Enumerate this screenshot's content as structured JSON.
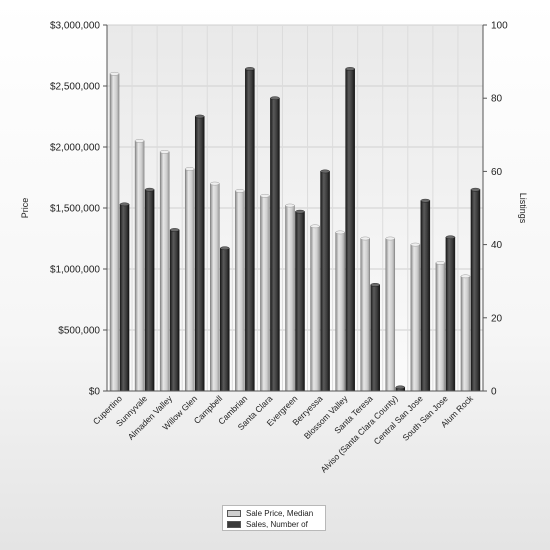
{
  "chart_data": {
    "type": "bar",
    "categories": [
      "Cupertino",
      "Sunnyvale",
      "Almaden Valley",
      "Willow Glen",
      "Campbell",
      "Cambrian",
      "Santa Clara",
      "Evergreen",
      "Berryessa",
      "Blossom Valley",
      "Santa Teresa",
      "Alviso (Santa Clara County)",
      "Central San Jose",
      "South San Jose",
      "Alum Rock"
    ],
    "series": [
      {
        "name": "Sale Price, Median",
        "axis": "left",
        "color": "#c8c8c8",
        "values": [
          2600000,
          2050000,
          1960000,
          1820000,
          1700000,
          1640000,
          1600000,
          1520000,
          1350000,
          1300000,
          1250000,
          1250000,
          1200000,
          1050000,
          940000
        ]
      },
      {
        "name": "Sales, Number of",
        "axis": "right",
        "color": "#404040",
        "values": [
          51,
          55,
          44,
          75,
          39,
          88,
          80,
          49,
          60,
          88,
          29,
          1,
          52,
          42,
          55
        ]
      }
    ],
    "y_left": {
      "label": "Price",
      "range": [
        0,
        3000000
      ],
      "tick_labels": [
        "$0",
        "$500,000",
        "$1,000,000",
        "$1,500,000",
        "$2,000,000",
        "$2,500,000",
        "$3,000,000"
      ]
    },
    "y_right": {
      "label": "Listings",
      "range": [
        0,
        100
      ],
      "tick_labels": [
        "0",
        "20",
        "40",
        "60",
        "80",
        "100"
      ]
    },
    "grid": true,
    "legend_position": "bottom-center"
  }
}
